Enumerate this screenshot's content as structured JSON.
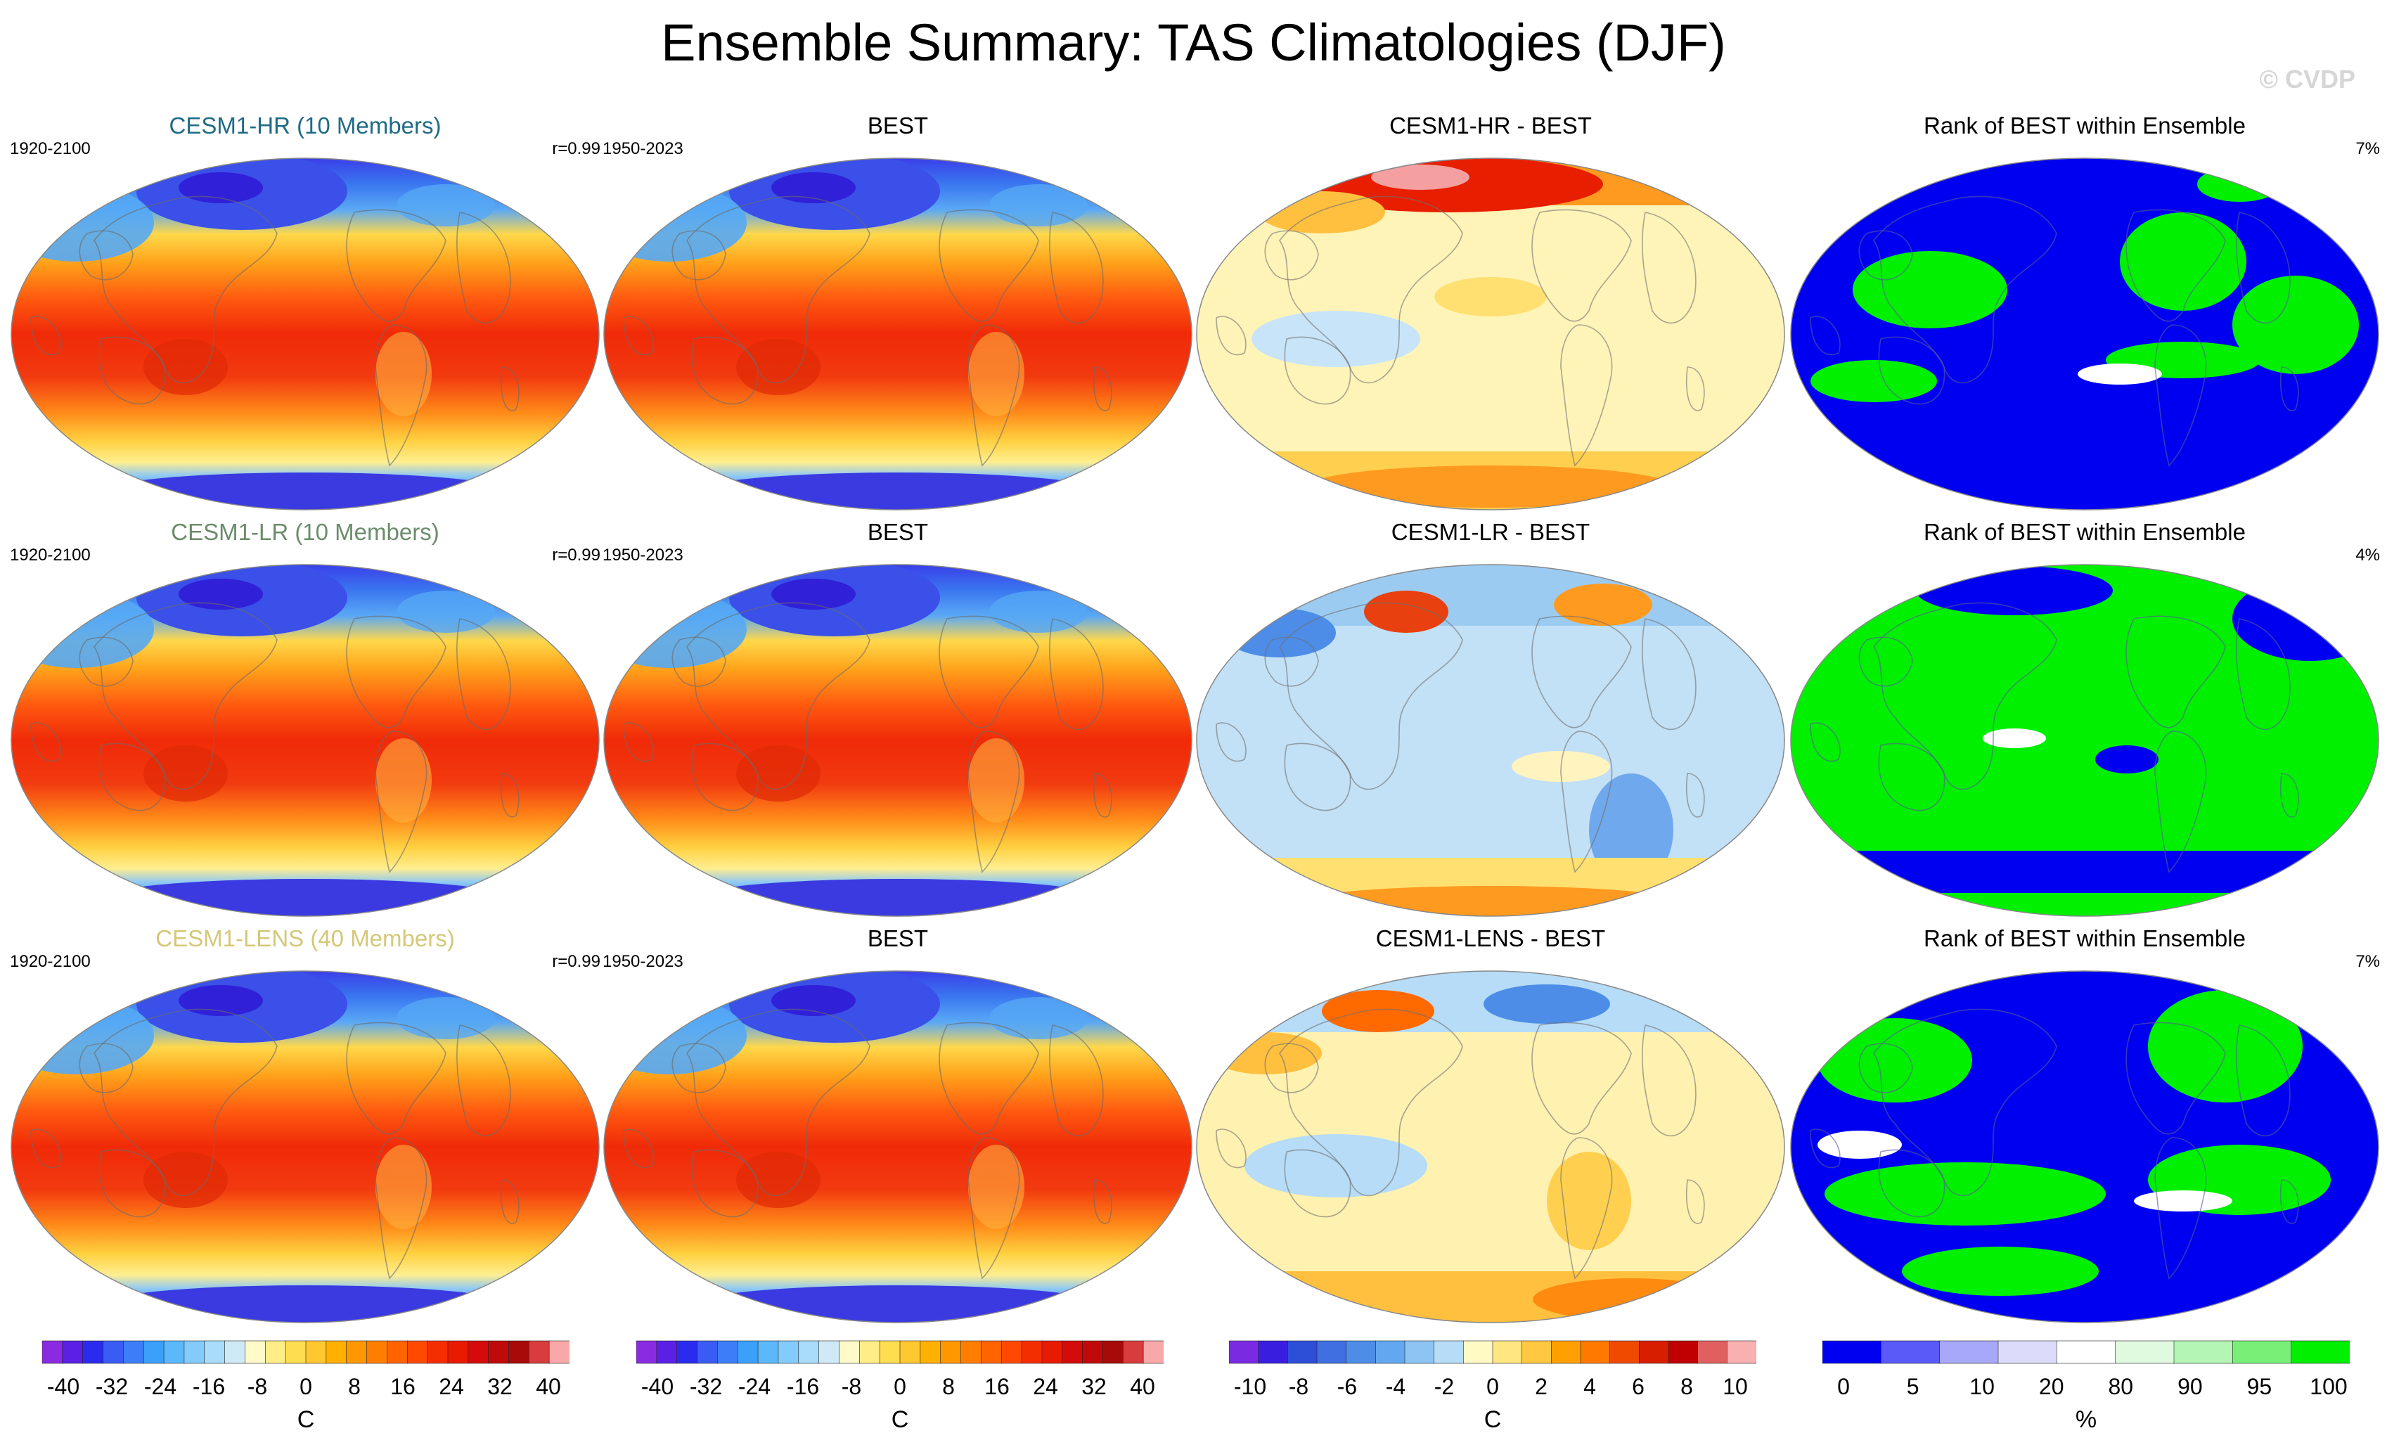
{
  "title": "Ensemble Summary: TAS Climatologies (DJF)",
  "watermark": "© CVDP",
  "colors": {
    "hr_title": "#1f6b86",
    "lr_title": "#6b8c6b",
    "lens_title": "#d4c878",
    "rank_blue": "#0000f0",
    "rank_green": "#00f000"
  },
  "rows": [
    {
      "model": {
        "title": "CESM1-HR (10 Members)",
        "title_color": "#1f6b86",
        "period": "1920-2100",
        "corr": "r=0.99"
      },
      "obs": {
        "title": "BEST",
        "period": "1950-2023"
      },
      "diff": {
        "title": "CESM1-HR - BEST",
        "bias": "warm"
      },
      "rank": {
        "title": "Rank of BEST within Ensemble",
        "percent": "7%",
        "dominant": "blue"
      }
    },
    {
      "model": {
        "title": "CESM1-LR (10 Members)",
        "title_color": "#6b8c6b",
        "period": "1920-2100",
        "corr": "r=0.99"
      },
      "obs": {
        "title": "BEST",
        "period": "1950-2023"
      },
      "diff": {
        "title": "CESM1-LR - BEST",
        "bias": "cool"
      },
      "rank": {
        "title": "Rank of BEST within Ensemble",
        "percent": "4%",
        "dominant": "green"
      }
    },
    {
      "model": {
        "title": "CESM1-LENS (40 Members)",
        "title_color": "#d4c878",
        "period": "1920-2100",
        "corr": "r=0.99"
      },
      "obs": {
        "title": "BEST",
        "period": "1950-2023"
      },
      "diff": {
        "title": "CESM1-LENS - BEST",
        "bias": "mixed"
      },
      "rank": {
        "title": "Rank of BEST within Ensemble",
        "percent": "7%",
        "dominant": "mixed"
      }
    }
  ],
  "colorbars": [
    {
      "ticks": [
        "-40",
        "-32",
        "-24",
        "-16",
        "-8",
        "0",
        "8",
        "16",
        "24",
        "32",
        "40"
      ],
      "units": "C",
      "colors": [
        "#8a2be2",
        "#5a20e6",
        "#2b2bf0",
        "#3a5cf5",
        "#3d7ef8",
        "#3aa0fa",
        "#5ab8fb",
        "#82cbfb",
        "#a8dcfa",
        "#cfe9f6",
        "#fffac8",
        "#ffee88",
        "#ffdd50",
        "#ffc830",
        "#ffb000",
        "#ff9800",
        "#ff7e00",
        "#ff6400",
        "#ff4800",
        "#f52e00",
        "#e81a00",
        "#d50a0a",
        "#c00a0a",
        "#a80a0a",
        "#d83c3c",
        "#f8a8a8"
      ]
    },
    {
      "ticks": [
        "-40",
        "-32",
        "-24",
        "-16",
        "-8",
        "0",
        "8",
        "16",
        "24",
        "32",
        "40"
      ],
      "units": "C",
      "colors": [
        "#8a2be2",
        "#5a20e6",
        "#2b2bf0",
        "#3a5cf5",
        "#3d7ef8",
        "#3aa0fa",
        "#5ab8fb",
        "#82cbfb",
        "#a8dcfa",
        "#cfe9f6",
        "#fffac8",
        "#ffee88",
        "#ffdd50",
        "#ffc830",
        "#ffb000",
        "#ff9800",
        "#ff7e00",
        "#ff6400",
        "#ff4800",
        "#f52e00",
        "#e81a00",
        "#d50a0a",
        "#c00a0a",
        "#a80a0a",
        "#d83c3c",
        "#f8a8a8"
      ]
    },
    {
      "ticks": [
        "-10",
        "-8",
        "-6",
        "-4",
        "-2",
        "0",
        "2",
        "4",
        "6",
        "8",
        "10"
      ],
      "units": "C",
      "colors": [
        "#7a2be2",
        "#3a1ee0",
        "#2d4fd8",
        "#3f6fe0",
        "#4d8de8",
        "#62a8f0",
        "#8cc4f4",
        "#b6dcf7",
        "#fffac4",
        "#ffe680",
        "#ffc840",
        "#ffa000",
        "#ff7800",
        "#f04a00",
        "#d81e00",
        "#c00000",
        "#e06060",
        "#f8b0b0"
      ]
    },
    {
      "ticks": [
        "0",
        "5",
        "10",
        "20",
        "80",
        "90",
        "95",
        "100"
      ],
      "units": "%",
      "colors": [
        "#0000f0",
        "#5a5af8",
        "#a8a8f8",
        "#dcdcfa",
        "#ffffff",
        "#e0fae0",
        "#b4f4b4",
        "#78f078",
        "#00f000"
      ]
    }
  ]
}
